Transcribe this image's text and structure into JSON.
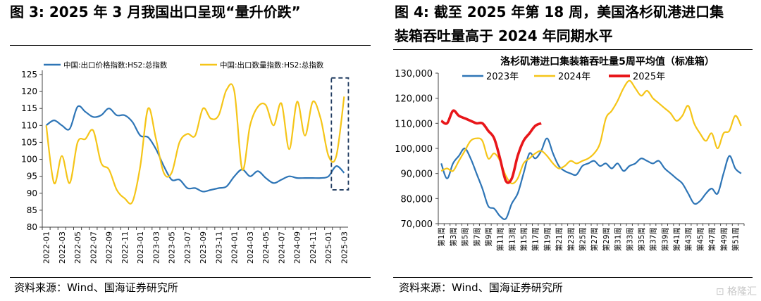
{
  "figures": [
    {
      "title": "图 3:  2025 年 3 月我国出口呈现“量升价跌”",
      "source": "资料来源：Wind、国海证券研究所"
    },
    {
      "title_line1": "图 4:  截至 2025 年第 18 周，美国洛杉矶港进口集",
      "title_line2": "装箱吞吐量高于 2024 年同期水平",
      "source": "资料来源：Wind、国海证券研究所"
    }
  ],
  "watermark": "格隆汇",
  "chart_data": [
    {
      "type": "line",
      "title": "",
      "xlabel": "",
      "ylabel": "",
      "ylim": [
        80,
        125
      ],
      "yticks": [
        80,
        85,
        90,
        95,
        100,
        105,
        110,
        115,
        120,
        125
      ],
      "x": [
        "2022-01",
        "2022-02",
        "2022-03",
        "2022-04",
        "2022-05",
        "2022-06",
        "2022-07",
        "2022-08",
        "2022-09",
        "2022-10",
        "2022-11",
        "2022-12",
        "2023-01",
        "2023-02",
        "2023-03",
        "2023-04",
        "2023-05",
        "2023-06",
        "2023-07",
        "2023-08",
        "2023-09",
        "2023-10",
        "2023-11",
        "2023-12",
        "2024-01",
        "2024-02",
        "2024-03",
        "2024-04",
        "2024-05",
        "2024-06",
        "2024-07",
        "2024-08",
        "2024-09",
        "2024-10",
        "2024-11",
        "2024-12",
        "2025-01",
        "2025-02",
        "2025-03"
      ],
      "xticklabels": [
        "2022-01",
        "2022-03",
        "2022-05",
        "2022-07",
        "2022-09",
        "2022-11",
        "2023-01",
        "2023-03",
        "2023-05",
        "2023-07",
        "2023-09",
        "2023-11",
        "2024-01",
        "2024-03",
        "2024-05",
        "2024-07",
        "2024-09",
        "2024-11",
        "2025-01",
        "2025-03"
      ],
      "legend_position": "top",
      "series": [
        {
          "name": "中国:出口价格指数:HS2:总指数",
          "color": "#2E75B6",
          "values": [
            110,
            111.5,
            110,
            109,
            115.5,
            114,
            112.5,
            113,
            115,
            113,
            113,
            111,
            107,
            106.5,
            103,
            98,
            94,
            94,
            91.5,
            91.5,
            90.5,
            91,
            91.5,
            92,
            95,
            97,
            95,
            96.5,
            94.5,
            93,
            94,
            95,
            94.5,
            94.5,
            94.5,
            94.5,
            95,
            98,
            96
          ]
        },
        {
          "name": "中国:出口数量指数:HS2:总指数",
          "color": "#F5C518",
          "values": [
            110,
            93,
            101,
            93,
            105,
            106,
            108.5,
            99,
            97,
            91,
            88.5,
            87.5,
            98,
            115,
            106,
            96,
            96,
            105,
            107.5,
            107,
            115,
            112,
            113,
            120.5,
            120,
            97,
            110,
            115.5,
            116,
            110,
            116.5,
            103,
            117,
            107,
            117,
            112,
            101,
            101,
            118.5
          ]
        }
      ],
      "annotation": "dashed box around 2025-02 to 2025-03"
    },
    {
      "type": "line",
      "title": "洛杉矶港进口集装箱吞吐量5周平均值（标准箱）",
      "xlabel": "",
      "ylabel": "",
      "ylim": [
        70000,
        130000
      ],
      "yticks": [
        "70,000",
        "80,000",
        "90,000",
        "100,000",
        "110,000",
        "120,000",
        "130,000"
      ],
      "weeks": 52,
      "xticklabels": [
        "第1周",
        "第3周",
        "第5周",
        "第7周",
        "第9周",
        "第11周",
        "第13周",
        "第15周",
        "第17周",
        "第19周",
        "第21周",
        "第23周",
        "第25周",
        "第27周",
        "第29周",
        "第31周",
        "第33周",
        "第35周",
        "第37周",
        "第39周",
        "第41周",
        "第43周",
        "第45周",
        "第47周",
        "第49周",
        "第51周"
      ],
      "legend_position": "top",
      "series": [
        {
          "name": "2023年",
          "color": "#2E75B6",
          "values": [
            94000,
            88000,
            94000,
            97000,
            100000,
            96000,
            90000,
            84000,
            77000,
            76000,
            73000,
            72000,
            78000,
            82000,
            90000,
            98000,
            96000,
            99000,
            104000,
            98000,
            93000,
            91000,
            90000,
            89500,
            93000,
            94000,
            95000,
            93000,
            94000,
            92000,
            94000,
            91000,
            93000,
            94000,
            96000,
            95000,
            94000,
            95000,
            92000,
            90000,
            88000,
            86000,
            82000,
            78000,
            79000,
            82000,
            84000,
            82000,
            90000,
            97000,
            92000,
            90000
          ]
        },
        {
          "name": "2024年",
          "color": "#F5C518",
          "values": [
            91000,
            92000,
            91000,
            95000,
            99000,
            103000,
            104000,
            103000,
            96000,
            98000,
            95000,
            89000,
            86000,
            88000,
            94000,
            96000,
            98000,
            99000,
            97000,
            94000,
            92000,
            93000,
            95000,
            94000,
            95000,
            96000,
            98000,
            102000,
            112000,
            115000,
            119000,
            124000,
            127000,
            124000,
            121000,
            123000,
            120000,
            118000,
            116000,
            114000,
            111000,
            113000,
            117000,
            110000,
            106000,
            103000,
            106000,
            100000,
            106000,
            107000,
            113000,
            109000
          ]
        },
        {
          "name": "2025年",
          "color": "#E8161A",
          "values": [
            111000,
            110000,
            115000,
            113000,
            112000,
            111000,
            110000,
            110000,
            107000,
            104000,
            96000,
            87000,
            88000,
            97000,
            103000,
            106000,
            109000,
            110000
          ]
        }
      ]
    }
  ]
}
